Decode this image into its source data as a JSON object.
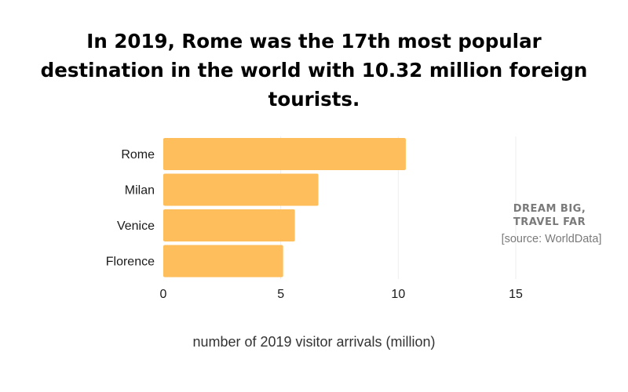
{
  "title": "In 2019, Rome was the 17th most popular destination in the world with 10.32 million foreign tourists.",
  "brand": {
    "line1": "DREAM BIG,",
    "line2": "TRAVEL FAR"
  },
  "source": "[source: WorldData]",
  "colors": {
    "bar": "#FFBE5C",
    "grid": "#eeeeee",
    "text": "#1a1a1a"
  },
  "chart_data": {
    "type": "bar",
    "orientation": "horizontal",
    "categories": [
      "Rome",
      "Milan",
      "Venice",
      "Florence"
    ],
    "values": [
      10.32,
      6.6,
      5.6,
      5.1
    ],
    "xlabel": "number of 2019 visitor arrivals (million)",
    "ylabel": "",
    "xlim": [
      0,
      15
    ],
    "xticks": [
      "0",
      "5",
      "10",
      "15"
    ],
    "grid": true
  }
}
